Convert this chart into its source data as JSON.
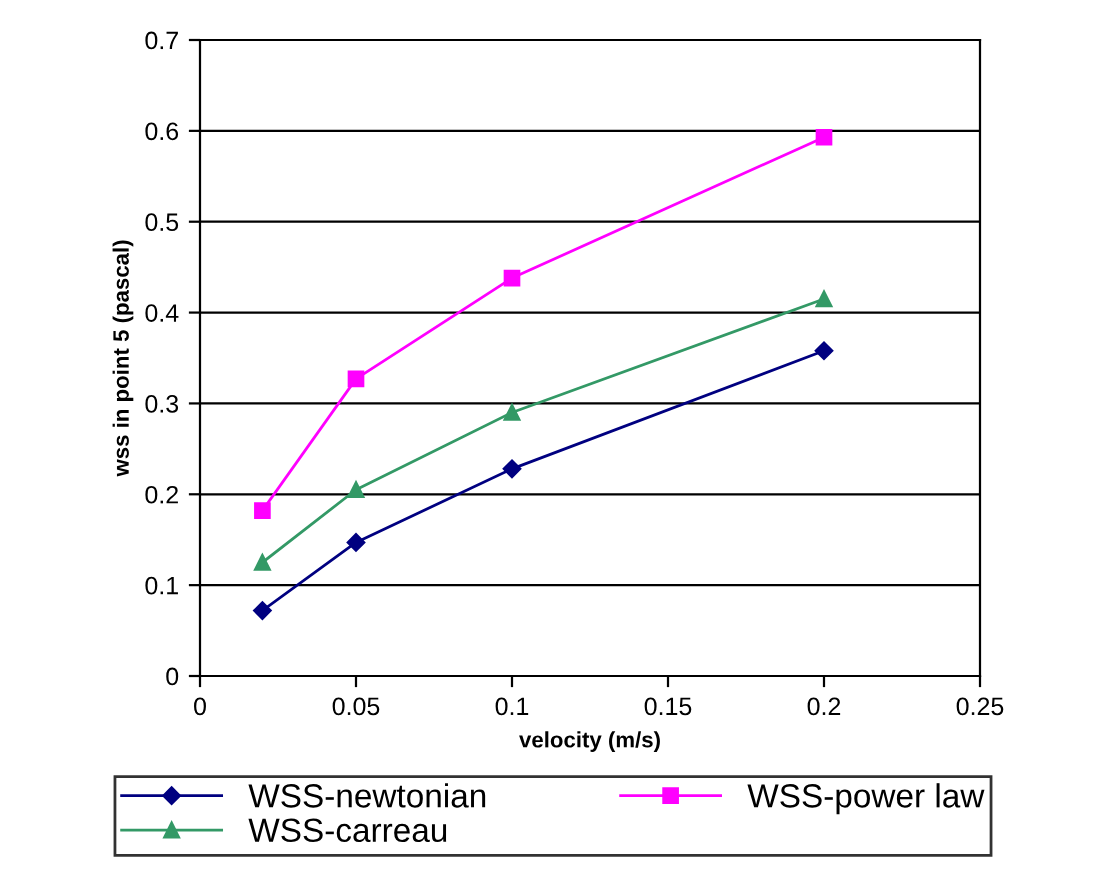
{
  "chart_data": {
    "type": "line",
    "xlabel": "velocity (m/s)",
    "ylabel": "wss in point 5 (pascal)",
    "xlim": [
      0,
      0.25
    ],
    "xticks": [
      0,
      0.05,
      0.1,
      0.15,
      0.2,
      0.25
    ],
    "ylim": [
      0,
      0.7
    ],
    "yticks": [
      0,
      0.1,
      0.2,
      0.3,
      0.4,
      0.5,
      0.6,
      0.7
    ],
    "grid": "y",
    "legend": "bottom",
    "series": [
      {
        "name": "WSS-newtonian",
        "color": "#000080",
        "marker": "diamond",
        "x": [
          0.02,
          0.05,
          0.1,
          0.2
        ],
        "values": [
          0.072,
          0.147,
          0.228,
          0.358
        ]
      },
      {
        "name": "WSS-power law",
        "color": "#ff00ff",
        "marker": "square",
        "x": [
          0.02,
          0.05,
          0.1,
          0.2
        ],
        "values": [
          0.182,
          0.327,
          0.438,
          0.593
        ]
      },
      {
        "name": "WSS-carreau",
        "color": "#339966",
        "marker": "triangle",
        "x": [
          0.02,
          0.05,
          0.1,
          0.2
        ],
        "values": [
          0.125,
          0.205,
          0.29,
          0.415
        ]
      }
    ]
  }
}
